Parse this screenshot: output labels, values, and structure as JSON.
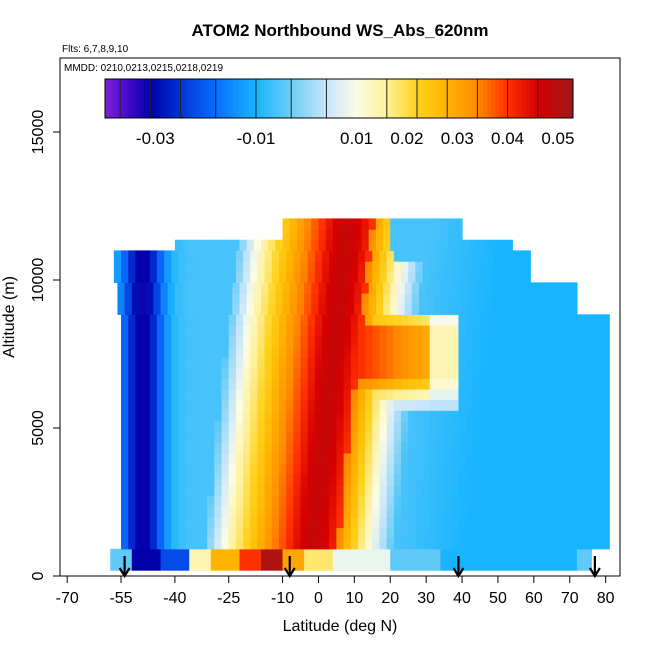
{
  "chart_data": {
    "type": "heatmap",
    "title": "ATOM2 Northbound WS_Abs_620nm",
    "flights_note": "Flts: 6,7,8,9,10",
    "dates_note": "MMDD: 0210,0213,0215,0218,0219",
    "xlabel": "Latitude (deg N)",
    "ylabel": "Altitude (m)",
    "xlim": [
      -72,
      84
    ],
    "ylim": [
      0,
      17500
    ],
    "x_ticks": [
      -70,
      -55,
      -40,
      -25,
      -10,
      0,
      10,
      20,
      30,
      40,
      50,
      60,
      70,
      80
    ],
    "y_ticks": [
      0,
      5000,
      10000,
      15000
    ],
    "colorbar": {
      "ticks": [
        -0.03,
        -0.01,
        0.01,
        0.02,
        0.03,
        0.04,
        0.05
      ],
      "stops": [
        {
          "v": -0.04,
          "c": "#7e22ce"
        },
        {
          "v": -0.037,
          "c": "#5b0fd6"
        },
        {
          "v": -0.031,
          "c": "#0000a8"
        },
        {
          "v": -0.025,
          "c": "#0033d6"
        },
        {
          "v": -0.018,
          "c": "#0a6cff"
        },
        {
          "v": -0.01,
          "c": "#18b4ff"
        },
        {
          "v": -0.003,
          "c": "#6ccdf7"
        },
        {
          "v": 0.004,
          "c": "#c8e6fa"
        },
        {
          "v": 0.01,
          "c": "#fbfce6"
        },
        {
          "v": 0.016,
          "c": "#fff099"
        },
        {
          "v": 0.022,
          "c": "#ffd21c"
        },
        {
          "v": 0.028,
          "c": "#ffb400"
        },
        {
          "v": 0.034,
          "c": "#ff8800"
        },
        {
          "v": 0.04,
          "c": "#ff3000"
        },
        {
          "v": 0.046,
          "c": "#d60000"
        },
        {
          "v": 0.053,
          "c": "#9e1a1a"
        }
      ]
    },
    "flight_turn_markers_lat": [
      -54,
      -8,
      39,
      77
    ]
  }
}
